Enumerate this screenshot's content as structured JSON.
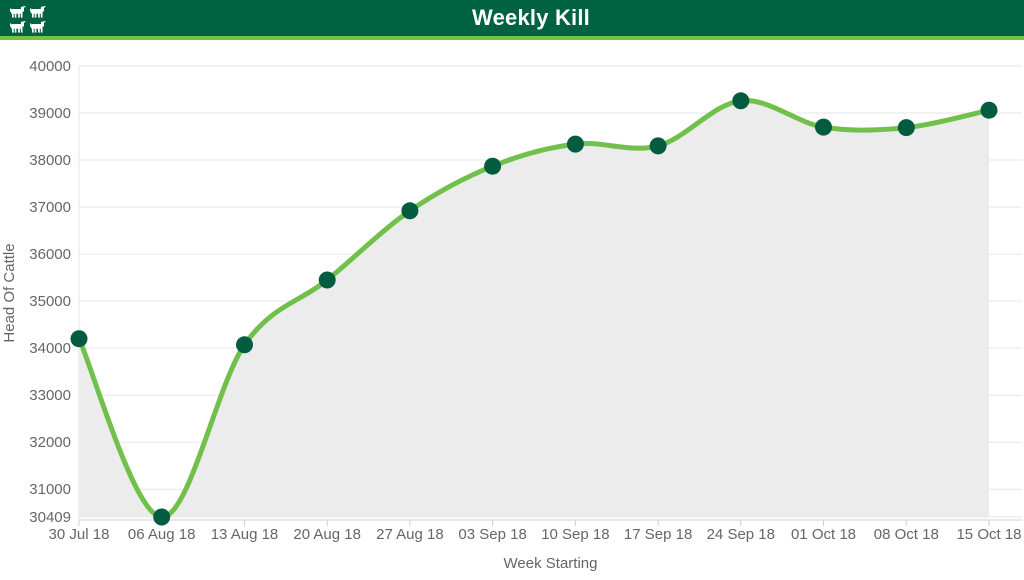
{
  "header": {
    "title": "Weekly Kill",
    "icon": "cattle-icon"
  },
  "colors": {
    "header_bg": "#006241",
    "header_border": "#76c043",
    "title_text": "#ffffff",
    "line": "#72c04c",
    "marker": "#045c40",
    "area": "#ececec",
    "grid": "#e6e6e6",
    "axis_line": "#d0d0d0",
    "axis_text": "#666666"
  },
  "chart_data": {
    "type": "area",
    "title": "Weekly Kill",
    "xlabel": "Week Starting",
    "ylabel": "Head Of Cattle",
    "categories": [
      "30 Jul 18",
      "06 Aug 18",
      "13 Aug 18",
      "20 Aug 18",
      "27 Aug 18",
      "03 Sep 18",
      "10 Sep 18",
      "17 Sep 18",
      "24 Sep 18",
      "01 Oct 18",
      "08 Oct 18",
      "15 Oct 18"
    ],
    "series": [
      {
        "name": "Weekly Kill",
        "values": [
          34200,
          30409,
          34070,
          35450,
          36920,
          37870,
          38340,
          38300,
          39260,
          38700,
          38690,
          39060
        ]
      }
    ],
    "ylim": [
      30409,
      40000
    ],
    "yticks": [
      40000,
      39000,
      38000,
      37000,
      36000,
      35000,
      34000,
      33000,
      32000,
      31000,
      30409
    ],
    "grid": "horizontal-only",
    "legend": "none",
    "smooth": true,
    "marker": "filled-circle"
  }
}
